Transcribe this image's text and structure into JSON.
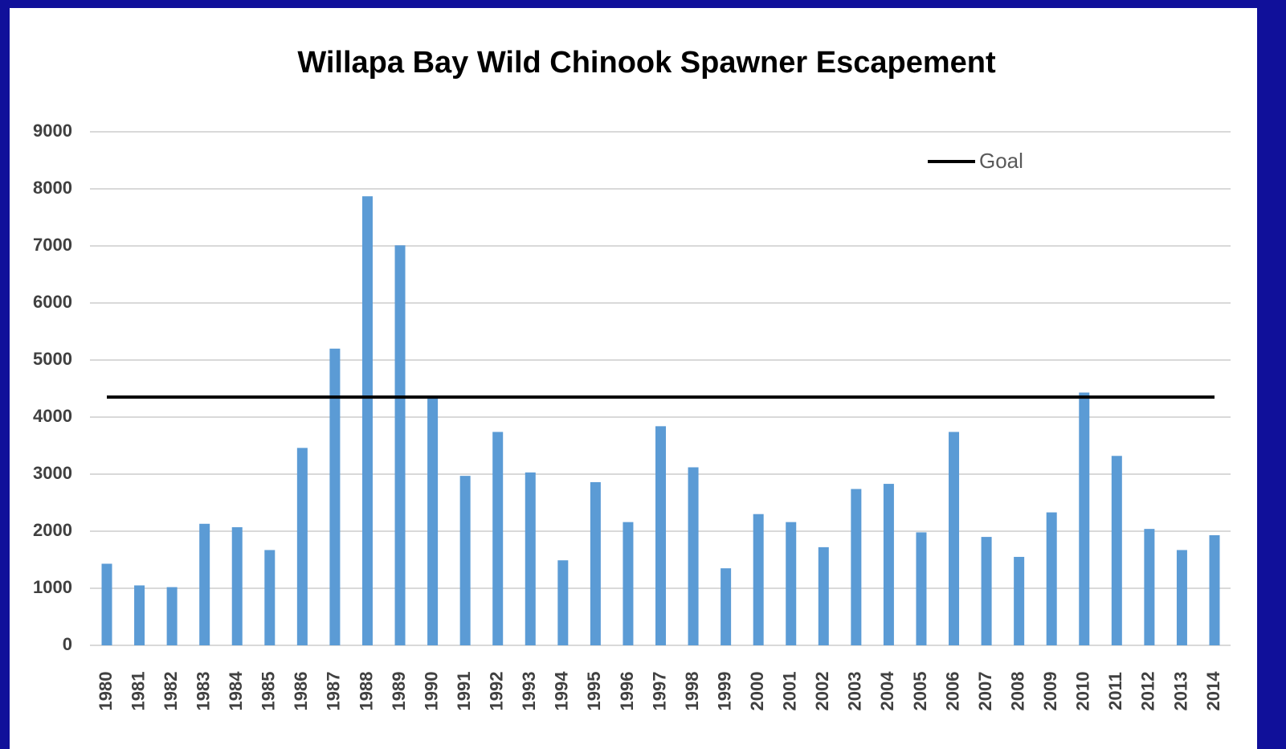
{
  "chart_data": {
    "type": "bar",
    "title": "Willapa Bay Wild Chinook Spawner Escapement",
    "categories": [
      "1980",
      "1981",
      "1982",
      "1983",
      "1984",
      "1985",
      "1986",
      "1987",
      "1988",
      "1989",
      "1990",
      "1991",
      "1992",
      "1993",
      "1994",
      "1995",
      "1996",
      "1997",
      "1998",
      "1999",
      "2000",
      "2001",
      "2002",
      "2003",
      "2004",
      "2005",
      "2006",
      "2007",
      "2008",
      "2009",
      "2010",
      "2011",
      "2012",
      "2013",
      "2014"
    ],
    "values": [
      1430,
      1050,
      1020,
      2130,
      2070,
      1670,
      3460,
      5200,
      7870,
      7010,
      4340,
      2970,
      3740,
      3030,
      1490,
      2860,
      2160,
      3840,
      3120,
      1350,
      2300,
      2160,
      1720,
      2740,
      2830,
      1980,
      3740,
      1900,
      1550,
      2330,
      4430,
      3320,
      2040,
      1670,
      1930
    ],
    "color": "#5b9bd5",
    "goal": {
      "name": "Goal",
      "value": 4350,
      "color": "#000000"
    },
    "ylim": [
      0,
      9000
    ],
    "yticks": [
      0,
      1000,
      2000,
      3000,
      4000,
      5000,
      6000,
      7000,
      8000,
      9000
    ],
    "grid": true,
    "legend": "top-right"
  }
}
